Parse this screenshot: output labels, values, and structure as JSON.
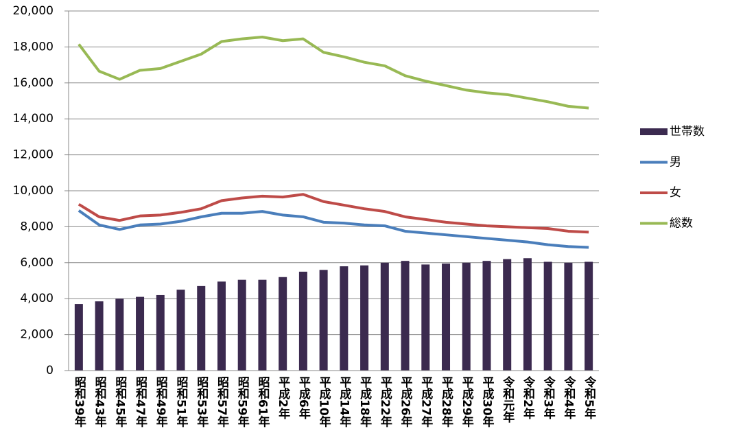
{
  "chart_data": {
    "type": "bar",
    "categories": [
      "昭和39年",
      "昭和43年",
      "昭和45年",
      "昭和47年",
      "昭和49年",
      "昭和51年",
      "昭和53年",
      "昭和57年",
      "昭和59年",
      "昭和61年",
      "平成2年",
      "平成6年",
      "平成10年",
      "平成14年",
      "平成18年",
      "平成22年",
      "平成26年",
      "平成27年",
      "平成28年",
      "平成29年",
      "平成30年",
      "令和元年",
      "令和2年",
      "令和3年",
      "令和4年",
      "令和5年"
    ],
    "series": [
      {
        "name": "世帯数",
        "type": "bar",
        "color": "#3b2a4f",
        "values": [
          3700,
          3850,
          4000,
          4100,
          4200,
          4500,
          4700,
          4950,
          5050,
          5050,
          5200,
          5500,
          5600,
          5800,
          5850,
          6000,
          6100,
          5900,
          5950,
          6000,
          6100,
          6200,
          6250,
          6050,
          6000,
          6050
        ]
      },
      {
        "name": "男",
        "type": "line",
        "color": "#4a7ebb",
        "values": [
          8900,
          8100,
          7850,
          8100,
          8150,
          8300,
          8550,
          8750,
          8750,
          8850,
          8650,
          8550,
          8250,
          8200,
          8100,
          8050,
          7750,
          7650,
          7550,
          7450,
          7350,
          7250,
          7150,
          7000,
          6900,
          6850
        ]
      },
      {
        "name": "女",
        "type": "line",
        "color": "#be4b48",
        "values": [
          9250,
          8550,
          8350,
          8600,
          8650,
          8800,
          9000,
          9450,
          9600,
          9700,
          9650,
          9800,
          9400,
          9200,
          9000,
          8850,
          8550,
          8400,
          8250,
          8150,
          8050,
          8000,
          7950,
          7900,
          7750,
          7700
        ]
      },
      {
        "name": "総数",
        "type": "line",
        "color": "#98b954",
        "values": [
          18150,
          16650,
          16200,
          16700,
          16800,
          17200,
          17600,
          18300,
          18450,
          18550,
          18350,
          18450,
          17700,
          17450,
          17150,
          16950,
          16400,
          16100,
          15850,
          15600,
          15450,
          15350,
          15150,
          14950,
          14700,
          14600
        ]
      }
    ],
    "ylim": [
      0,
      20000
    ],
    "yticks": [
      0,
      {
        "value": 2000,
        "label": "2,000"
      },
      {
        "value": 4000,
        "label": "4,000"
      },
      {
        "value": 6000,
        "label": "6,000"
      },
      {
        "value": 8000,
        "label": "8,000"
      },
      {
        "value": 10000,
        "label": "10,000"
      },
      {
        "value": 12000,
        "label": "12,000"
      },
      {
        "value": 14000,
        "label": "14,000"
      },
      {
        "value": 16000,
        "label": "16,000"
      },
      {
        "value": 18000,
        "label": "18,000"
      },
      {
        "value": 20000,
        "label": "20,000"
      }
    ],
    "grid": true,
    "legend": "right"
  }
}
